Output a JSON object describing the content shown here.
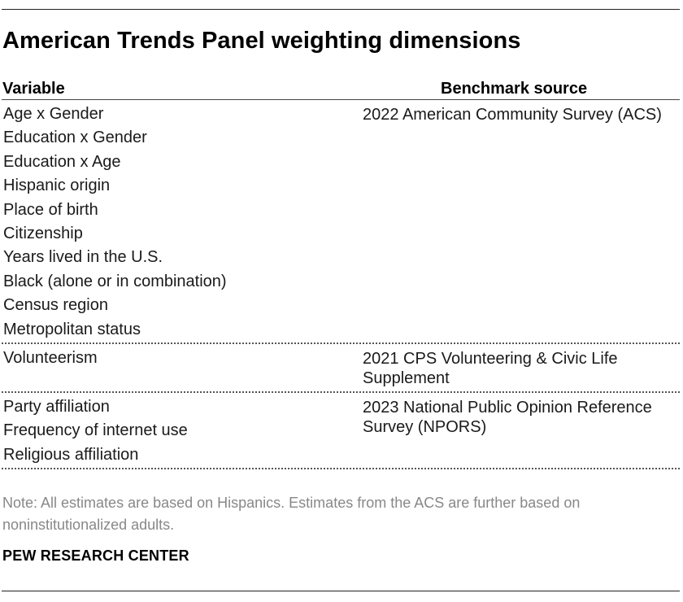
{
  "title": "American Trends Panel weighting dimensions",
  "columns": {
    "variable": "Variable",
    "benchmark": "Benchmark source"
  },
  "groups": [
    {
      "variables": [
        "Age x Gender",
        "Education x Gender",
        "Education x Age",
        "Hispanic origin",
        "Place of birth",
        "Citizenship",
        "Years lived in the U.S.",
        "Black (alone or in combination)",
        "Census region",
        "Metropolitan status"
      ],
      "source": "2022 American Community Survey (ACS)"
    },
    {
      "variables": [
        "Volunteerism"
      ],
      "source": "2021 CPS Volunteering & Civic Life Supplement"
    },
    {
      "variables": [
        "Party affiliation",
        "Frequency of internet use",
        "Religious affiliation"
      ],
      "source": "2023 National Public Opinion Reference Survey (NPORS)"
    }
  ],
  "note": "Note: All estimates are based on Hispanics. Estimates from the ACS are further based on noninstitutionalized adults.",
  "organization": "PEW RESEARCH CENTER"
}
